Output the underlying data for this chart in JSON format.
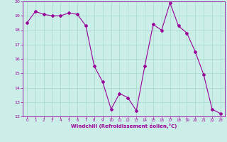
{
  "x": [
    0,
    1,
    2,
    3,
    4,
    5,
    6,
    7,
    8,
    9,
    10,
    11,
    12,
    13,
    14,
    15,
    16,
    17,
    18,
    19,
    20,
    21,
    22,
    23
  ],
  "y": [
    18.5,
    19.3,
    19.1,
    19.0,
    19.0,
    19.2,
    19.1,
    18.3,
    15.5,
    14.4,
    12.5,
    13.6,
    13.3,
    12.4,
    15.5,
    18.4,
    18.0,
    19.9,
    18.3,
    17.8,
    16.5,
    14.9,
    12.5,
    12.2
  ],
  "line_color": "#990099",
  "marker": "D",
  "marker_size": 2.0,
  "bg_color": "#cceee8",
  "grid_color": "#aaddcc",
  "xlabel": "Windchill (Refroidissement éolien,°C)",
  "xlabel_color": "#990099",
  "tick_color": "#990099",
  "spine_color": "#990099",
  "ylim": [
    12,
    20
  ],
  "xlim": [
    -0.5,
    23.5
  ],
  "yticks": [
    12,
    13,
    14,
    15,
    16,
    17,
    18,
    19,
    20
  ],
  "xticks": [
    0,
    1,
    2,
    3,
    4,
    5,
    6,
    7,
    8,
    9,
    10,
    11,
    12,
    13,
    14,
    15,
    16,
    17,
    18,
    19,
    20,
    21,
    22,
    23
  ]
}
